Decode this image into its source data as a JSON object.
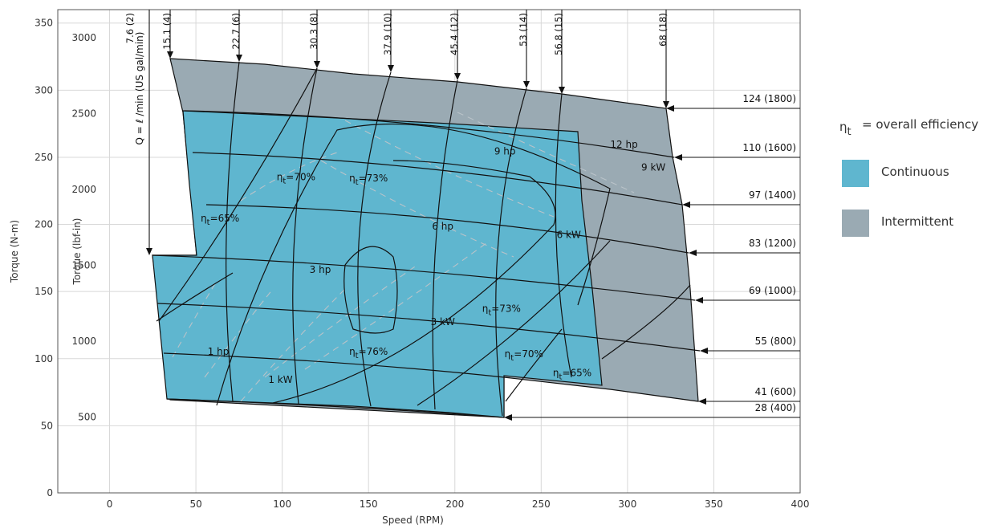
{
  "chart_data": {
    "type": "area",
    "xlabel": "Speed (RPM)",
    "ylabel": "Torque (N-m)",
    "ylabel_secondary": "Torque (lbf-in)",
    "xlim": [
      -30,
      400
    ],
    "ylim": [
      0,
      360
    ],
    "x_ticks": [
      0,
      50,
      100,
      150,
      200,
      250,
      300,
      350,
      400
    ],
    "y_ticks": [
      0,
      50,
      100,
      150,
      200,
      250,
      300,
      350
    ],
    "y2_ticks": [
      500,
      1000,
      1500,
      2000,
      2500,
      3000
    ],
    "grid": true,
    "flow_axis_label": "Q = ℓ /min (US gal/min)",
    "flow_lines": [
      {
        "label": "7.6 (2)",
        "value": 7.6,
        "gpm": 2
      },
      {
        "label": "15.1 (4)",
        "value": 15.1,
        "gpm": 4
      },
      {
        "label": "22.7 (6)",
        "value": 22.7,
        "gpm": 6
      },
      {
        "label": "30.3 (8)",
        "value": 30.3,
        "gpm": 8
      },
      {
        "label": "37.9 (10)",
        "value": 37.9,
        "gpm": 10
      },
      {
        "label": "45.4 (12)",
        "value": 45.4,
        "gpm": 12
      },
      {
        "label": "53 (14)",
        "value": 53,
        "gpm": 14
      },
      {
        "label": "56.8 (15)",
        "value": 56.8,
        "gpm": 15
      },
      {
        "label": "68 (18)",
        "value": 68,
        "gpm": 18
      }
    ],
    "pressure_lines": [
      {
        "label": "124 (1800)",
        "bar": 124,
        "psi": 1800
      },
      {
        "label": "110 (1600)",
        "bar": 110,
        "psi": 1600
      },
      {
        "label": "97 (1400)",
        "bar": 97,
        "psi": 1400
      },
      {
        "label": "83 (1200)",
        "bar": 83,
        "psi": 1200
      },
      {
        "label": "69 (1000)",
        "bar": 69,
        "psi": 1000
      },
      {
        "label": "55 (800)",
        "bar": 55,
        "psi": 800
      },
      {
        "label": "41 (600)",
        "bar": 41,
        "psi": 600
      },
      {
        "label": "28 (400)",
        "bar": 28,
        "psi": 400
      }
    ],
    "power_labels": [
      {
        "text": "1 hp",
        "x": 63,
        "y": 103
      },
      {
        "text": "1 kW",
        "x": 99,
        "y": 82
      },
      {
        "text": "3 hp",
        "x": 122,
        "y": 164
      },
      {
        "text": "3 kW",
        "x": 193,
        "y": 125
      },
      {
        "text": "6 hp",
        "x": 193,
        "y": 196
      },
      {
        "text": "6 kW",
        "x": 266,
        "y": 190
      },
      {
        "text": "9 hp",
        "x": 229,
        "y": 252
      },
      {
        "text": "9 kW",
        "x": 315,
        "y": 240
      },
      {
        "text": "12 hp",
        "x": 298,
        "y": 257
      }
    ],
    "efficiency_labels": [
      {
        "text": "ηt=65%",
        "x": 64,
        "y": 202
      },
      {
        "text": "ηt=70%",
        "x": 108,
        "y": 233
      },
      {
        "text": "ηt=73%",
        "x": 150,
        "y": 232
      },
      {
        "text": "ηt=76%",
        "x": 150,
        "y": 103
      },
      {
        "text": "ηt=73%",
        "x": 227,
        "y": 135
      },
      {
        "text": "ηt=70%",
        "x": 240,
        "y": 101
      },
      {
        "text": "ηt=65%",
        "x": 268,
        "y": 87
      }
    ],
    "legend": {
      "placement": "right",
      "efficiency_note": "= overall efficiency",
      "efficiency_symbol": "ηt",
      "items": [
        {
          "label": "Continuous",
          "color": "#5fb6cf"
        },
        {
          "label": "Intermittent",
          "color": "#9aaab3"
        }
      ]
    },
    "colors": {
      "continuous": "#5fb6cf",
      "intermittent": "#9aaab3",
      "grid": "#d8d8d8",
      "curve": "#111111"
    }
  }
}
